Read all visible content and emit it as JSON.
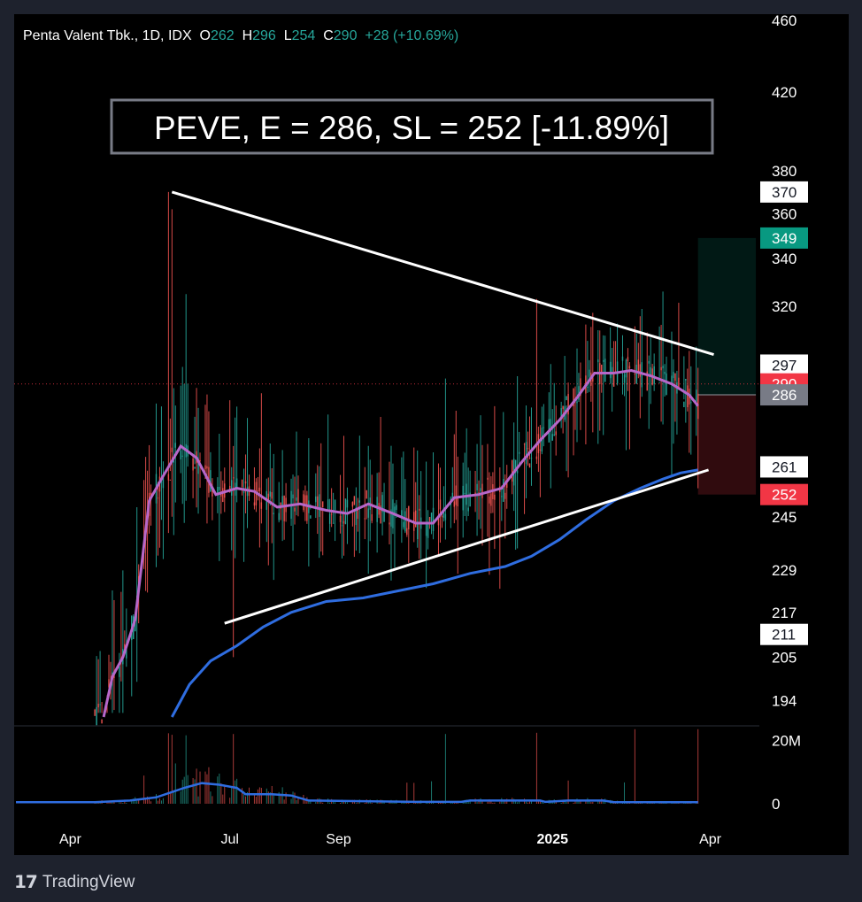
{
  "header": {
    "symbol": "Penta Valent Tbk., 1D, IDX",
    "o_label": "O",
    "o_value": "262",
    "h_label": "H",
    "h_value": "296",
    "l_label": "L",
    "l_value": "254",
    "c_label": "C",
    "c_value": "290",
    "change": "+28 (+10.69%)"
  },
  "annotation": "PEVE, E = 286, SL = 252 [-11.89%]",
  "branding": {
    "name": "TradingView"
  },
  "colors": {
    "up": "#26a69a",
    "down": "#ef5350",
    "ma_fast": "#b667c9",
    "ma_slow": "#2f6de0",
    "target": "#089981",
    "stop": "#f23645",
    "entry": "#787b86"
  },
  "chart_data": {
    "type": "candlestick",
    "price_axis_ticks": [
      460,
      420,
      380,
      360,
      340,
      320,
      245,
      229,
      217,
      205,
      194
    ],
    "price_scale": "log",
    "ylim": [
      190,
      470
    ],
    "price_badges": [
      {
        "value": 370,
        "text": "370",
        "style": "white"
      },
      {
        "value": 349,
        "text": "349",
        "style": "target"
      },
      {
        "value": 297,
        "text": "297",
        "style": "white"
      },
      {
        "value": 290,
        "text": "290",
        "style": "last"
      },
      {
        "value": 286,
        "text": "286",
        "style": "entry"
      },
      {
        "value": 261,
        "text": "261",
        "style": "white"
      },
      {
        "value": 252,
        "text": "252",
        "style": "stop"
      },
      {
        "value": 211,
        "text": "211",
        "style": "white"
      }
    ],
    "volume_axis_ticks": [
      "20M",
      "0"
    ],
    "time_axis_ticks": [
      {
        "date": "2024-04-01",
        "text": "Apr",
        "bold": false
      },
      {
        "date": "2024-07-01",
        "text": "Jul",
        "bold": false
      },
      {
        "date": "2024-09-01",
        "text": "Sep",
        "bold": false
      },
      {
        "date": "2025-01-01",
        "text": "2025",
        "bold": true
      },
      {
        "date": "2025-04-01",
        "text": "Apr",
        "bold": false
      }
    ],
    "trendlines": [
      {
        "name": "resistance",
        "from": {
          "date": "2024-05-29",
          "price": 370
        },
        "to": {
          "date": "2025-04-03",
          "price": 301
        }
      },
      {
        "name": "support",
        "from": {
          "date": "2024-06-28",
          "price": 214
        },
        "to": {
          "date": "2025-03-31",
          "price": 260
        }
      }
    ],
    "position": {
      "entry": 286,
      "stop": 252,
      "target": 349,
      "start": "2025-03-25",
      "end": "2025-04-27"
    },
    "ma_fast": [
      [
        "2024-04-20",
        190
      ],
      [
        "2024-04-25",
        200
      ],
      [
        "2024-05-01",
        205
      ],
      [
        "2024-05-08",
        215
      ],
      [
        "2024-05-16",
        250
      ],
      [
        "2024-05-24",
        258
      ],
      [
        "2024-06-03",
        268
      ],
      [
        "2024-06-12",
        264
      ],
      [
        "2024-06-23",
        252
      ],
      [
        "2024-07-05",
        254
      ],
      [
        "2024-07-15",
        253
      ],
      [
        "2024-07-28",
        248
      ],
      [
        "2024-08-10",
        249
      ],
      [
        "2024-08-25",
        247
      ],
      [
        "2024-09-06",
        246
      ],
      [
        "2024-09-18",
        249
      ],
      [
        "2024-10-02",
        246
      ],
      [
        "2024-10-15",
        243
      ],
      [
        "2024-10-25",
        243
      ],
      [
        "2024-11-06",
        251
      ],
      [
        "2024-11-20",
        252
      ],
      [
        "2024-12-03",
        254
      ],
      [
        "2024-12-15",
        263
      ],
      [
        "2024-12-25",
        270
      ],
      [
        "2025-01-05",
        277
      ],
      [
        "2025-01-15",
        285
      ],
      [
        "2025-01-25",
        294
      ],
      [
        "2025-02-05",
        294
      ],
      [
        "2025-02-15",
        295
      ],
      [
        "2025-02-26",
        293
      ],
      [
        "2025-03-10",
        290
      ],
      [
        "2025-03-20",
        286
      ],
      [
        "2025-03-25",
        282
      ]
    ],
    "ma_slow": [
      [
        "2024-05-29",
        190
      ],
      [
        "2024-06-08",
        198
      ],
      [
        "2024-06-20",
        204
      ],
      [
        "2024-07-05",
        208
      ],
      [
        "2024-07-20",
        213
      ],
      [
        "2024-08-05",
        217
      ],
      [
        "2024-08-25",
        220
      ],
      [
        "2024-09-15",
        221
      ],
      [
        "2024-10-05",
        223
      ],
      [
        "2024-10-25",
        225
      ],
      [
        "2024-11-15",
        228
      ],
      [
        "2024-12-05",
        230
      ],
      [
        "2024-12-20",
        233
      ],
      [
        "2025-01-05",
        238
      ],
      [
        "2025-01-20",
        244
      ],
      [
        "2025-02-05",
        250
      ],
      [
        "2025-02-20",
        254
      ],
      [
        "2025-03-05",
        257
      ],
      [
        "2025-03-15",
        259
      ],
      [
        "2025-03-25",
        260
      ]
    ],
    "volume_ma": [
      [
        "2024-03-01",
        0.5
      ],
      [
        "2024-04-15",
        0.5
      ],
      [
        "2024-05-05",
        1.0
      ],
      [
        "2024-05-20",
        2.0
      ],
      [
        "2024-06-05",
        5.0
      ],
      [
        "2024-06-15",
        6.5
      ],
      [
        "2024-06-25",
        6.0
      ],
      [
        "2024-07-05",
        5.0
      ],
      [
        "2024-07-10",
        3.0
      ],
      [
        "2024-07-25",
        3.0
      ],
      [
        "2024-08-05",
        2.6
      ],
      [
        "2024-08-15",
        1.0
      ],
      [
        "2024-09-15",
        0.8
      ],
      [
        "2024-10-15",
        0.6
      ],
      [
        "2024-11-10",
        0.6
      ],
      [
        "2024-11-15",
        1.0
      ],
      [
        "2024-12-25",
        1.0
      ],
      [
        "2024-12-28",
        0.6
      ],
      [
        "2025-01-10",
        1.0
      ],
      [
        "2025-01-30",
        1.0
      ],
      [
        "2025-02-05",
        0.5
      ],
      [
        "2025-03-25",
        0.5
      ]
    ]
  }
}
